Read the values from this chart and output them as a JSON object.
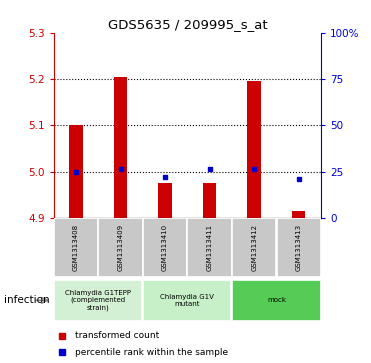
{
  "title": "GDS5635 / 209995_s_at",
  "samples": [
    "GSM1313408",
    "GSM1313409",
    "GSM1313410",
    "GSM1313411",
    "GSM1313412",
    "GSM1313413"
  ],
  "red_values": [
    5.1,
    5.205,
    4.975,
    4.975,
    5.195,
    4.915
  ],
  "blue_values": [
    5.0,
    5.005,
    4.988,
    5.005,
    5.005,
    4.983
  ],
  "ylim": [
    4.9,
    5.3
  ],
  "yticks_left": [
    4.9,
    5.0,
    5.1,
    5.2,
    5.3
  ],
  "yticks_right": [
    0,
    25,
    50,
    75,
    100
  ],
  "yticks_right_labels": [
    "0",
    "25",
    "50",
    "75",
    "100%"
  ],
  "base": 4.9,
  "groups": [
    {
      "label": "Chlamydia G1TEPP\n(complemented\nstrain)",
      "color": "#d4f0d4",
      "start": 0,
      "end": 2
    },
    {
      "label": "Chlamydia G1V\nmutant",
      "color": "#c8f0c8",
      "start": 2,
      "end": 4
    },
    {
      "label": "mock",
      "color": "#55cc55",
      "start": 4,
      "end": 6
    }
  ],
  "infection_label": "infection",
  "legend_red": "transformed count",
  "legend_blue": "percentile rank within the sample",
  "bar_width": 0.3,
  "red_color": "#cc0000",
  "blue_color": "#0000cc",
  "left_tick_color": "#cc0000",
  "right_tick_color": "#0000cc",
  "dotted_line_color": "#000000",
  "sample_box_color": "#c8c8c8",
  "grid_lines": [
    5.0,
    5.1,
    5.2
  ]
}
